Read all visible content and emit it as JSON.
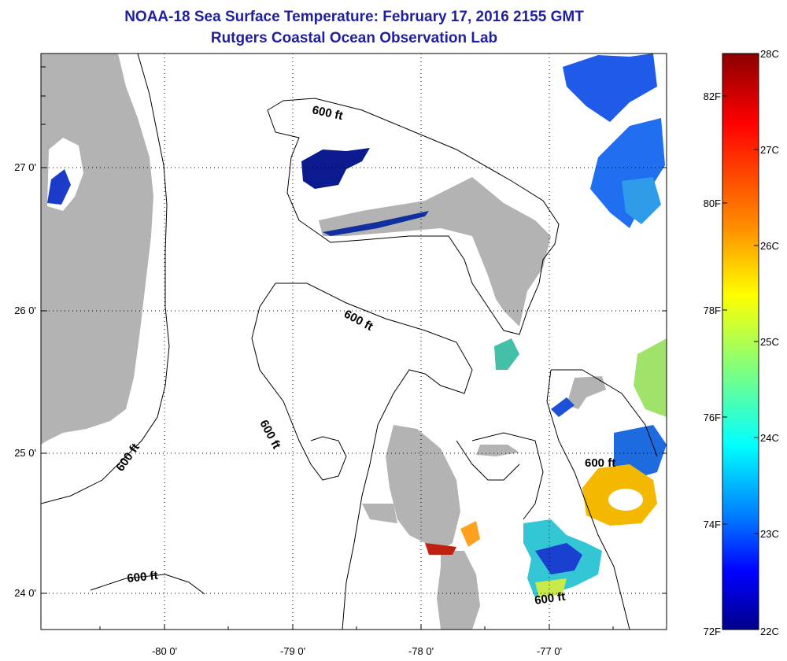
{
  "title": {
    "line1": "NOAA-18 Sea Surface Temperature:  February 17, 2016 2155 GMT",
    "line2": "Rutgers Coastal Ocean Observation Lab"
  },
  "axes": {
    "y_labels": [
      "27 0'",
      "26 0'",
      "25 0'",
      "24 0'"
    ],
    "x_labels": [
      "-80 0'",
      "-79 0'",
      "-78 0'",
      "-77 0'"
    ]
  },
  "contours": {
    "label": "600 ft"
  },
  "colorbar": {
    "fahrenheit": [
      "82F",
      "80F",
      "78F",
      "76F",
      "74F",
      "72F"
    ],
    "celsius": [
      "28C",
      "27C",
      "26C",
      "25C",
      "24C",
      "23C",
      "22C"
    ],
    "gradient_colors": [
      "#8b0000",
      "#ff0000",
      "#ff8c00",
      "#ffff00",
      "#7fff7f",
      "#00ffff",
      "#0080ff",
      "#0000ff",
      "#00008b"
    ]
  },
  "colors": {
    "title": "#1f1fa0",
    "land": "#b3b3b3",
    "grid": "#000000"
  }
}
